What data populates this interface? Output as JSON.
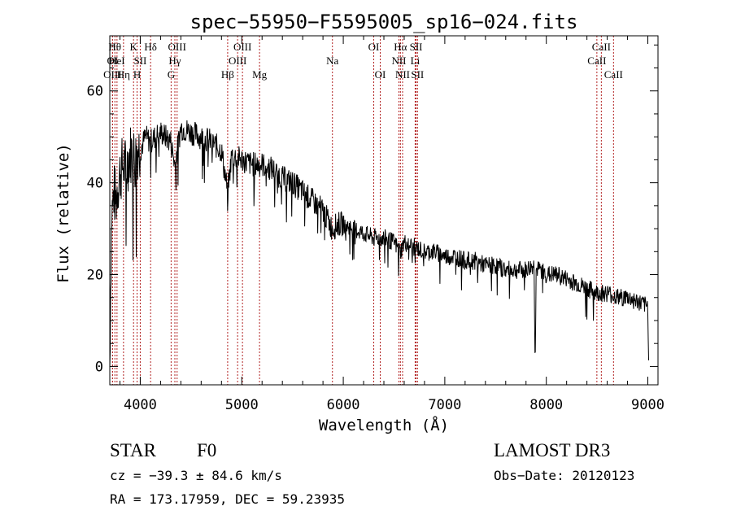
{
  "chart_data": {
    "type": "line",
    "title": "spec−55950−F5595005_sp16−024.fits",
    "xlabel": "Wavelength (Å)",
    "ylabel": "Flux (relative)",
    "xlim": [
      3700,
      9100
    ],
    "ylim": [
      -4,
      72
    ],
    "x_ticks": [
      4000,
      5000,
      6000,
      7000,
      8000,
      9000
    ],
    "x_tick_labels": [
      "4000",
      "5000",
      "6000",
      "7000",
      "8000",
      "9000"
    ],
    "y_ticks": [
      0,
      20,
      40,
      60
    ],
    "y_tick_labels": [
      "0",
      "20",
      "40",
      "60"
    ],
    "grid": false,
    "line_color": "#000000",
    "marker_color": "#b22222",
    "spectrum_anchors": {
      "x": [
        3700,
        3710,
        3720,
        3740,
        3760,
        3780,
        3800,
        3830,
        3860,
        3890,
        3920,
        3950,
        3980,
        4000,
        4050,
        4100,
        4150,
        4200,
        4250,
        4300,
        4340,
        4400,
        4500,
        4600,
        4700,
        4800,
        4861,
        4900,
        5000,
        5100,
        5200,
        5300,
        5400,
        5500,
        5600,
        5700,
        5800,
        5890,
        5950,
        6000,
        6100,
        6200,
        6300,
        6400,
        6500,
        6563,
        6600,
        6700,
        6800,
        6900,
        7000,
        7100,
        7200,
        7300,
        7400,
        7500,
        7600,
        7700,
        7800,
        7880,
        7890,
        7900,
        7950,
        8000,
        8100,
        8200,
        8300,
        8400,
        8500,
        8600,
        8700,
        8800,
        8900,
        9000,
        9010
      ],
      "y": [
        0,
        22,
        33,
        38,
        36,
        40,
        42,
        44,
        43,
        46,
        47,
        45,
        48,
        47,
        50,
        49,
        50,
        51,
        50,
        49,
        44,
        52,
        51,
        50,
        49,
        47,
        38,
        46,
        45,
        44,
        44,
        43,
        41,
        40,
        38,
        36,
        34,
        30,
        31,
        31,
        30,
        29,
        28,
        28,
        27,
        25,
        27,
        26,
        25,
        25,
        24,
        24,
        23,
        23,
        22,
        22,
        21,
        21,
        21,
        22,
        0,
        21,
        21,
        20,
        20,
        19,
        18,
        17,
        16,
        16,
        15,
        15,
        14,
        13,
        0
      ]
    },
    "lines": [
      {
        "label": "OI",
        "x": 3727,
        "row": 2
      },
      {
        "label": "OIII",
        "x": 3727,
        "row": 3
      },
      {
        "label": "Hθ",
        "x": 3750,
        "row": 1
      },
      {
        "label": "HeI",
        "x": 3771,
        "row": 2
      },
      {
        "label": "Hη",
        "x": 3835,
        "row": 3
      },
      {
        "label": "K",
        "x": 3934,
        "row": 1
      },
      {
        "label": "SII",
        "x": 4000,
        "row": 2
      },
      {
        "label": "H",
        "x": 3969,
        "row": 3
      },
      {
        "label": "Hδ",
        "x": 4102,
        "row": 1
      },
      {
        "label": "OIII",
        "x": 4363,
        "row": 1
      },
      {
        "label": "Hγ",
        "x": 4341,
        "row": 2
      },
      {
        "label": "G",
        "x": 4304,
        "row": 3
      },
      {
        "label": "OIII",
        "x": 5007,
        "row": 1
      },
      {
        "label": "OIII",
        "x": 4959,
        "row": 2
      },
      {
        "label": "Hβ",
        "x": 4861,
        "row": 3
      },
      {
        "label": "Mg",
        "x": 5175,
        "row": 3
      },
      {
        "label": "Na",
        "x": 5893,
        "row": 2
      },
      {
        "label": "OI",
        "x": 6300,
        "row": 1
      },
      {
        "label": "OI",
        "x": 6364,
        "row": 3
      },
      {
        "label": "Hα",
        "x": 6563,
        "row": 1
      },
      {
        "label": "NII",
        "x": 6548,
        "row": 2
      },
      {
        "label": "NII",
        "x": 6584,
        "row": 3
      },
      {
        "label": "SII",
        "x": 6717,
        "row": 1
      },
      {
        "label": "Li",
        "x": 6708,
        "row": 2
      },
      {
        "label": "SII",
        "x": 6731,
        "row": 3
      },
      {
        "label": "CaII",
        "x": 8542,
        "row": 1
      },
      {
        "label": "CaII",
        "x": 8498,
        "row": 2
      },
      {
        "label": "CaII",
        "x": 8662,
        "row": 3
      }
    ]
  },
  "info": {
    "object_class": "STAR",
    "subclass": "F0",
    "survey": "LAMOST DR3",
    "cz": "cz = −39.3 ± 84.6 km/s",
    "obs_date": "Obs−Date: 20120123",
    "coords": "RA = 173.17959, DEC =  59.23935"
  }
}
